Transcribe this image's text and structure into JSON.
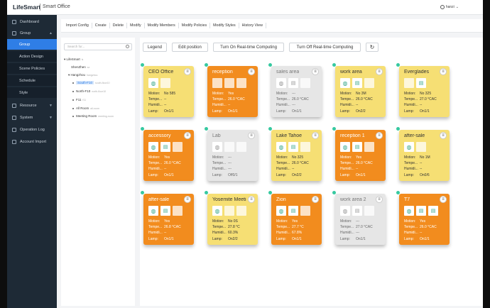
{
  "app": {
    "name": "LifeSmart",
    "subtitle": "Smart Office",
    "user": "hanzi"
  },
  "sidebar": {
    "items": [
      {
        "label": "Dashboard",
        "icon": "dashboard-icon"
      },
      {
        "label": "Group",
        "icon": "group-icon"
      },
      {
        "label": "Group"
      },
      {
        "label": "Action Design"
      },
      {
        "label": "Scene Policies"
      },
      {
        "label": "Schedule"
      },
      {
        "label": "Style"
      },
      {
        "label": "Resource",
        "icon": "resource-icon"
      },
      {
        "label": "System",
        "icon": "system-icon"
      },
      {
        "label": "Operation Log",
        "icon": "log-icon"
      },
      {
        "label": "Account Import",
        "icon": "import-icon"
      }
    ]
  },
  "tabs": [
    "Import Config",
    "Create",
    "Delete",
    "Modify",
    "Modify Members",
    "Modify Policies",
    "Modify Styles",
    "History View"
  ],
  "tree": {
    "search_placeholder": "Search for...",
    "nodes": [
      {
        "label": "LifeSmart",
        "muted": "ls"
      },
      {
        "label": "ShenZhen",
        "muted": "sz"
      },
      {
        "label": "Hangzhou",
        "muted": "hangzhou"
      },
      {
        "label": "South-F10",
        "muted": "south-floor10"
      },
      {
        "label": "North-F10",
        "muted": "north-floor10"
      },
      {
        "label": "F11",
        "muted": "f11"
      },
      {
        "label": "All Room",
        "muted": "all-room"
      },
      {
        "label": "Meeting Room",
        "muted": "meeting-room"
      }
    ]
  },
  "toolbar": {
    "legend": "Legend",
    "edit_position": "Edit position",
    "turn_on": "Turn On Real-time Computing",
    "turn_off": "Turn Off Real-time Computing",
    "refresh_icon": "refresh-icon"
  },
  "stat_labels": {
    "motion": "Motion:",
    "temp": "Tempe...",
    "humid": "Humidi...",
    "lamp": "Lamp:"
  },
  "colors": {
    "orange": "#f28c1e",
    "yellow": "#f6df74",
    "gray": "#e6e6e6",
    "accent": "#2f7ee6",
    "pin": "#36c9a0"
  },
  "rooms": [
    {
      "name": "CEO Office",
      "color": "yellow",
      "devices": [
        "light",
        "blank"
      ],
      "motion": "No 585",
      "temp": "--",
      "humid": "--",
      "lamp": "On1/1"
    },
    {
      "name": "reception",
      "color": "orange",
      "devices": [
        "blank",
        "blank",
        "blank"
      ],
      "motion": "Yes",
      "temp": "26.0 °CAC",
      "humid": "--",
      "lamp": "On1/1"
    },
    {
      "name": "sales area",
      "color": "gray",
      "devices": [
        "light",
        "ac",
        "blank"
      ],
      "motion": "---",
      "temp": "26.0 °CAC",
      "humid": "---",
      "lamp": "On1/1"
    },
    {
      "name": "work area",
      "color": "yellow",
      "devices": [
        "light",
        "ac",
        "blank"
      ],
      "motion": "No 3M",
      "temp": "26.0 °CAC",
      "humid": "--",
      "lamp": "On2/2"
    },
    {
      "name": "Everglades",
      "color": "yellow",
      "devices": [
        "blank",
        "ac"
      ],
      "motion": "No 325",
      "temp": "27.0 °CAC",
      "humid": "--",
      "lamp": "On1/1"
    },
    {
      "name": "accessory",
      "color": "orange",
      "devices": [
        "light",
        "ac",
        "blank"
      ],
      "motion": "Yes",
      "temp": "26.0 °CAC",
      "humid": "--",
      "lamp": "On1/1"
    },
    {
      "name": "Lab",
      "color": "gray",
      "devices": [
        "light",
        "blank",
        "blank"
      ],
      "motion": "---",
      "temp": "---",
      "humid": "---",
      "lamp": "Off0/1"
    },
    {
      "name": "Lake Tahoe",
      "color": "yellow",
      "devices": [
        "light",
        "ac",
        "blank"
      ],
      "motion": "No 325",
      "temp": "26.0 °CAC",
      "humid": "--",
      "lamp": "On2/2"
    },
    {
      "name": "reception 1",
      "color": "orange",
      "devices": [
        "light",
        "ac",
        "blank"
      ],
      "motion": "Yes",
      "temp": "26.0 °CAC",
      "humid": "--",
      "lamp": "On1/1"
    },
    {
      "name": "after-sale",
      "color": "yellow",
      "devices": [
        "light",
        "blank"
      ],
      "motion": "No 1M",
      "temp": "--",
      "humid": "--",
      "lamp": "On0/6"
    },
    {
      "name": "after-sale",
      "color": "orange",
      "devices": [
        "light",
        "ac",
        "blank"
      ],
      "motion": "Yes",
      "temp": "26.8 °CAC",
      "humid": "--",
      "lamp": "On1/1"
    },
    {
      "name": "Yosemite Meeti...",
      "color": "yellow",
      "devices": [
        "light",
        "blank",
        "blank"
      ],
      "motion": "No 0S",
      "temp": "27.8 °C",
      "humid": "60.3%",
      "lamp": "On2/2"
    },
    {
      "name": "Zion",
      "color": "orange",
      "devices": [
        "light",
        "ac",
        "blank"
      ],
      "motion": "Yes",
      "temp": "27.7 °C",
      "humid": "67.8%",
      "lamp": "On1/1"
    },
    {
      "name": "work area 2",
      "color": "gray",
      "devices": [
        "light",
        "ac",
        "blank"
      ],
      "motion": "---",
      "temp": "27.0 °CAC",
      "humid": "---",
      "lamp": "On1/1"
    },
    {
      "name": "T7",
      "color": "orange",
      "devices": [
        "light",
        "ac",
        "ac"
      ],
      "motion": "Yes",
      "temp": "26.0 °CAC",
      "humid": "--",
      "lamp": "On1/1"
    }
  ]
}
